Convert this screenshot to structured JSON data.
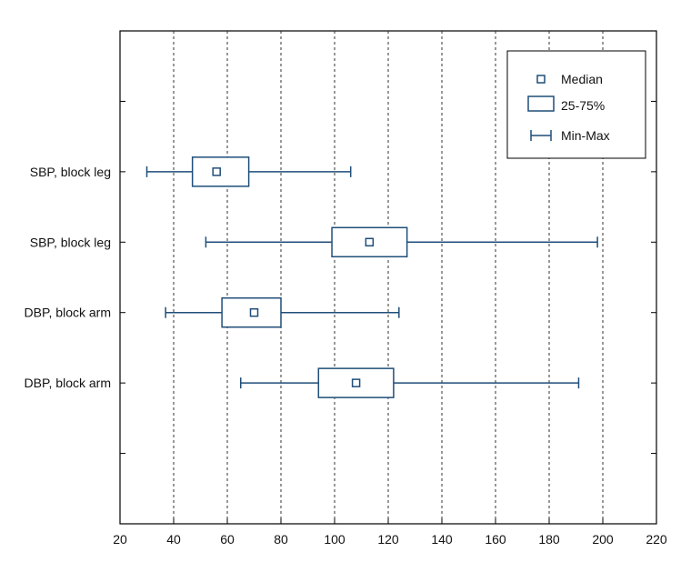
{
  "chart_data": {
    "type": "boxplot",
    "title": "",
    "xlabel": "",
    "ylabel": "",
    "xlim": [
      20,
      220
    ],
    "x_ticks": [
      20,
      40,
      60,
      80,
      100,
      120,
      140,
      160,
      180,
      200,
      220
    ],
    "grid": "vertical dashed",
    "orientation": "horizontal",
    "colors": {
      "box": "#1f4e79",
      "grid": "#333333",
      "axis": "#000000"
    },
    "legend": {
      "placement": "top-right",
      "items": [
        {
          "marker": "small-square",
          "label": "Median"
        },
        {
          "marker": "box",
          "label": "25-75%"
        },
        {
          "marker": "whisker",
          "label": "Min-Max"
        }
      ]
    },
    "categories": [
      "SBP, block leg",
      "SBP, block leg",
      "DBP, block arm",
      "DBP, block arm"
    ],
    "boxes": [
      {
        "label": "SBP, block leg",
        "min": 30,
        "q1": 47,
        "median": 56,
        "q3": 68,
        "max": 106
      },
      {
        "label": "SBP, block leg",
        "min": 52,
        "q1": 99,
        "median": 113,
        "q3": 127,
        "max": 198
      },
      {
        "label": "DBP, block arm",
        "min": 37,
        "q1": 58,
        "median": 70,
        "q3": 80,
        "max": 124
      },
      {
        "label": "DBP, block arm",
        "min": 65,
        "q1": 94,
        "median": 108,
        "q3": 122,
        "max": 191
      }
    ]
  }
}
